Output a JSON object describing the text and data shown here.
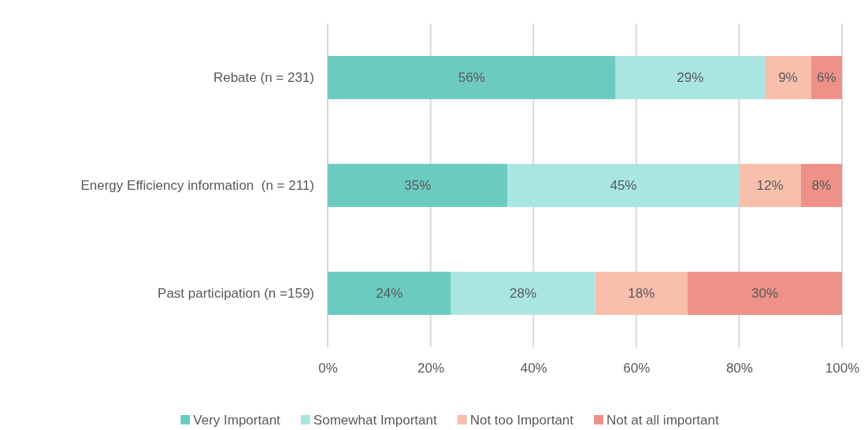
{
  "chart_data": {
    "type": "bar",
    "orientation": "horizontal",
    "stacked": true,
    "categories": [
      "Rebate (n = 231)",
      "Energy Efficiency information  (n = 211)",
      "Past participation (n =159)"
    ],
    "series": [
      {
        "name": "Very Important",
        "color": "#6ccbc0",
        "values": [
          56,
          35,
          24
        ],
        "value_labels": [
          "56%",
          "35%",
          "24%"
        ]
      },
      {
        "name": "Somewhat Important",
        "color": "#a9e6e2",
        "values": [
          29,
          45,
          28
        ],
        "value_labels": [
          "29%",
          "45%",
          "28%"
        ]
      },
      {
        "name": "Not too Important",
        "color": "#f8bfad",
        "values": [
          9,
          12,
          18
        ],
        "value_labels": [
          "9%",
          "12%",
          "18%"
        ]
      },
      {
        "name": "Not at all important",
        "color": "#ee9189",
        "values": [
          6,
          8,
          30
        ],
        "value_labels": [
          "6%",
          "8%",
          "30%"
        ]
      }
    ],
    "xlim": [
      0,
      100
    ],
    "xticks": [
      {
        "value": 0,
        "label": "0%"
      },
      {
        "value": 20,
        "label": "20%"
      },
      {
        "value": 40,
        "label": "40%"
      },
      {
        "value": 60,
        "label": "60%"
      },
      {
        "value": 80,
        "label": "80%"
      },
      {
        "value": 100,
        "label": "100%"
      }
    ],
    "grid": "x",
    "legend": "bottom"
  }
}
